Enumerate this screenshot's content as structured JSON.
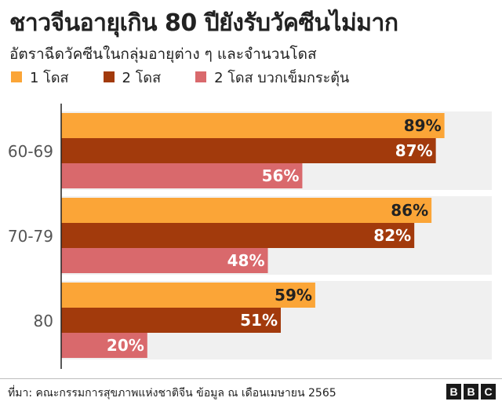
{
  "title": "ชาวจีนอายุเกิน 80 ปียังรับวัคซีนไม่มาก",
  "subtitle": "อัตราฉีดวัคซีนในกลุ่มอายุต่าง ๆ และจำนวนโดส",
  "source": "ที่มา: คณะกรรมการสุขภาพแห่งชาติจีน ข้อมูล ณ เดือนเมษายน 2565",
  "logo": [
    "B",
    "B",
    "C"
  ],
  "colors": {
    "dose1": "#FBA537",
    "dose2": "#A23A0C",
    "booster": "#D9696C",
    "band": "#F0F0F0",
    "axis": "#222222",
    "label_light": "#FFFFFF",
    "label_dark": "#222222"
  },
  "chart_data": {
    "type": "bar",
    "orientation": "horizontal",
    "categories": [
      "60-69",
      "70-79",
      "80"
    ],
    "series": [
      {
        "name": "1 โดส",
        "values": [
          89,
          86,
          59
        ]
      },
      {
        "name": "2 โดส",
        "values": [
          87,
          82,
          51
        ]
      },
      {
        "name": "2 โดส บวกเข็มกระตุ้น",
        "values": [
          56,
          48,
          20
        ]
      }
    ],
    "value_suffix": "%",
    "xlim": [
      0,
      100
    ],
    "legend_position": "top-left",
    "grid": false
  }
}
